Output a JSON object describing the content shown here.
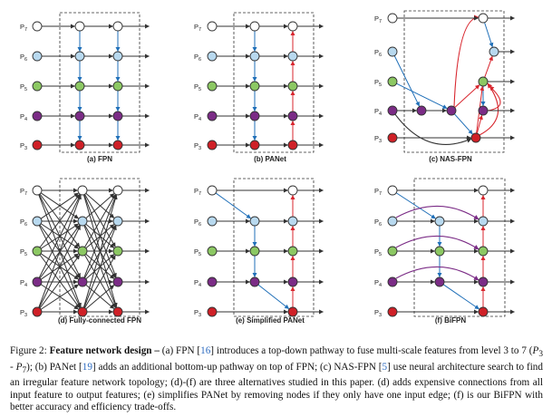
{
  "figure": {
    "level_labels": [
      "P",
      "P",
      "P",
      "P",
      "P"
    ],
    "level_subs": [
      "7",
      "6",
      "5",
      "4",
      "3"
    ],
    "panels": [
      {
        "id": "fpn",
        "caption": "(a) FPN"
      },
      {
        "id": "panet",
        "caption": "(b) PANet"
      },
      {
        "id": "nasfpn",
        "caption": "(c) NAS-FPN"
      },
      {
        "id": "fcfpn",
        "caption": "(d) Fully-connected FPN"
      },
      {
        "id": "simpanet",
        "caption": "(e) Simplified PANet"
      },
      {
        "id": "bifpn",
        "caption": "(f) BiFPN"
      }
    ],
    "colors": {
      "p7": "#ffffff",
      "p6": "#b8d9ef",
      "p5": "#8cc863",
      "p4": "#7b2c86",
      "p3": "#cf2027",
      "blue_arrow": "#1f6fb8",
      "red_arrow": "#d8262e",
      "purple_arrow": "#7b2c86",
      "black_arrow": "#333333"
    }
  },
  "caption": {
    "prefix": "Figure 2: ",
    "title": "Feature network design –",
    "p1": " (a) FPN [",
    "r1": "16",
    "p2": "] introduces a top-down pathway to fuse multi-scale features from level 3 to 7 (",
    "m1": "P",
    "m1s": "3",
    "p3": " - ",
    "m2": "P",
    "m2s": "7",
    "p4": "); (b) PANet [",
    "r2": "19",
    "p5": "] adds an additional bottom-up pathway on top of FPN; (c) NAS-FPN [",
    "r3": "5",
    "p6": "] use neural architecture search to find an irregular feature network topology; (d)-(f) are three alternatives studied in this paper. (d) adds expensive connections from all input feature to output features; (e) simplifies PANet by removing nodes if they only have one input edge; (f) is our BiFPN with better accuracy and efficiency trade-offs."
  }
}
